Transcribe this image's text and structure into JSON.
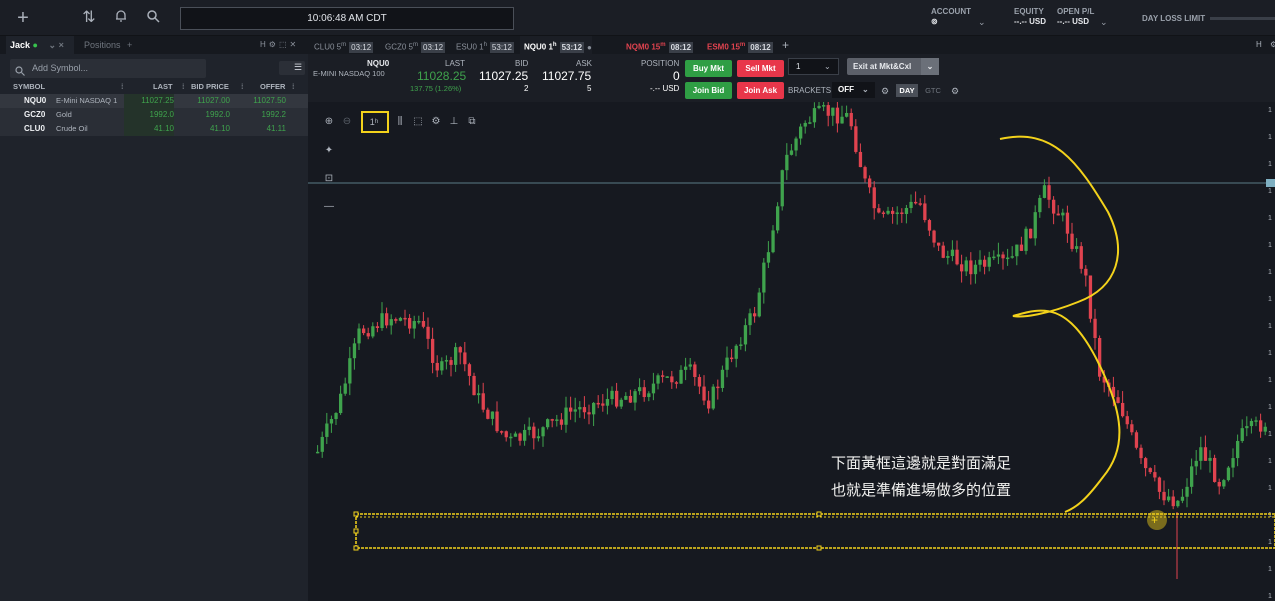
{
  "top": {
    "clock": "10:06:48 AM CDT",
    "account_label": "ACCOUNT",
    "account_value": "⊚",
    "equity_label": "EQUITY",
    "equity_value": "--.-- USD",
    "open_pl_label": "OPEN P/L",
    "open_pl_value": "--.-- USD",
    "day_loss_label": "DAY LOSS LIMIT"
  },
  "left": {
    "tab_user": "Jack",
    "tab_positions": "Positions",
    "search_placeholder": "Add Symbol...",
    "columns": [
      "SYMBOL",
      "LAST",
      "BID PRICE",
      "OFFER"
    ],
    "rows": [
      {
        "symbol": "NQU0",
        "name": "E-Mini NASDAQ 1",
        "last": "11027.25",
        "bid": "11027.00",
        "offer": "11027.50"
      },
      {
        "symbol": "GCZ0",
        "name": "Gold",
        "last": "1992.0",
        "bid": "1992.0",
        "offer": "1992.2"
      },
      {
        "symbol": "CLU0",
        "name": "Crude Oil",
        "last": "41.10",
        "bid": "41.10",
        "offer": "41.11"
      }
    ]
  },
  "chart_tabs": [
    {
      "sym": "CLU0 5",
      "sup": "m",
      "time": "03:12"
    },
    {
      "sym": "GCZ0 5",
      "sup": "m",
      "time": "03:12"
    },
    {
      "sym": "ESU0 1",
      "sup": "h",
      "time": "53:12"
    },
    {
      "sym": "NQU0 1",
      "sup": "h",
      "time": "53:12"
    },
    {
      "sym": "NQM0 15",
      "sup": "m",
      "time": "08:12"
    },
    {
      "sym": "ESM0 15",
      "sup": "m",
      "time": "08:12"
    }
  ],
  "quote": {
    "symbol": "NQU0",
    "desc": "E-MINI NASDAQ 100",
    "last_label": "LAST",
    "last": "11028.25",
    "change": "137.75 (1.26%)",
    "bid_label": "BID",
    "bid": "11027.25",
    "bid_size": "2",
    "ask_label": "ASK",
    "ask": "11027.75",
    "ask_size": "5",
    "position_label": "POSITION",
    "position": "0",
    "position_usd": "-.-- USD",
    "buy_mkt": "Buy Mkt",
    "sell_mkt": "Sell Mkt",
    "join_bid": "Join Bid",
    "join_ask": "Join Ask",
    "qty": "1",
    "exit": "Exit at Mkt&Cxl",
    "brackets_label": "BRACKETS",
    "brackets_value": "OFF",
    "day": "DAY",
    "gtc": "GTC"
  },
  "annotation": {
    "line1": "下面黃框這邊就是對面滿足",
    "line2": "也就是準備進場做多的位置"
  },
  "colors": {
    "up": "#3fa34d",
    "down": "#e0434f",
    "annot": "#f3d21b",
    "accent_green": "#2f9e44",
    "accent_red": "#e8364a"
  }
}
